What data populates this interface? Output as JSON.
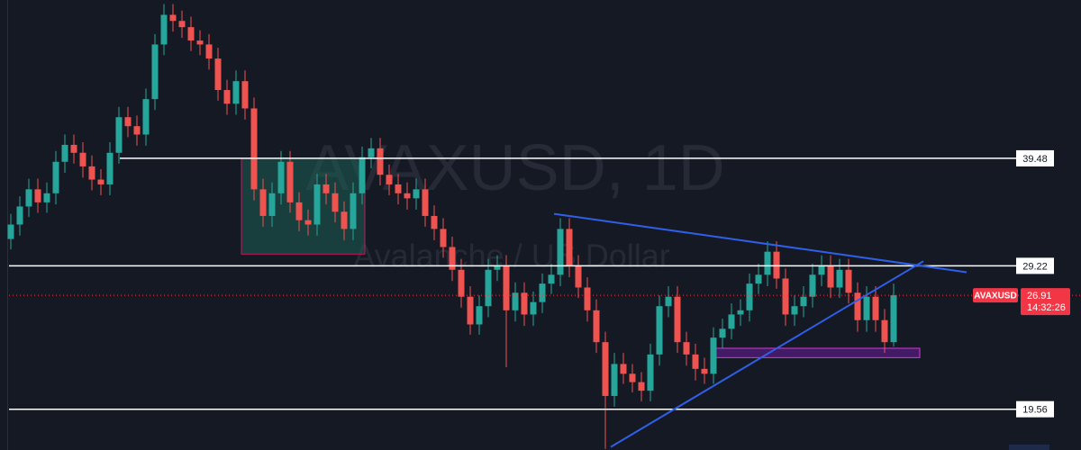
{
  "chart_data": {
    "type": "candlestick",
    "symbol": "AVAXUSD",
    "watermark_title": "AVAXUSD, 1D",
    "watermark_subtitle": "Avalanche / US Dollar",
    "log_scale": true,
    "ylim": [
      17.45,
      61.5
    ],
    "xlim": [
      -0.2,
      111.6
    ],
    "up_color": "#26a69a",
    "down_color": "#ef5350",
    "open": [
      31.5,
      32.8,
      34.5,
      36.2,
      34.9,
      35.8,
      39.1,
      41.0,
      40.1,
      38.6,
      37.2,
      36.7,
      40.1,
      44.3,
      43.2,
      42.2,
      46.6,
      54.3,
      59.0,
      58.0,
      57.0,
      54.9,
      54.3,
      52.2,
      47.8,
      46.0,
      49.0,
      45.4,
      36.2,
      33.6,
      35.8,
      39.1,
      34.9,
      33.2,
      32.8,
      36.7,
      35.8,
      34.0,
      32.4,
      35.8,
      39.6,
      40.6,
      37.7,
      36.7,
      35.8,
      35.3,
      36.2,
      33.6,
      32.4,
      30.8,
      28.9,
      26.8,
      24.8,
      26.1,
      28.9,
      29.2,
      25.8,
      27.1,
      25.5,
      26.4,
      27.8,
      28.5,
      32.4,
      29.2,
      27.5,
      25.8,
      23.6,
      20.3,
      22.2,
      21.6,
      21.1,
      20.6,
      22.8,
      26.1,
      26.8,
      23.6,
      22.8,
      21.9,
      21.6,
      23.9,
      24.5,
      25.5,
      25.8,
      27.8,
      28.5,
      30.4,
      28.2,
      25.5,
      26.1,
      26.8,
      28.5,
      29.2,
      27.5,
      28.9,
      27.1,
      25.1,
      26.8,
      25.1,
      23.6
    ],
    "high": [
      33.8,
      35.5,
      37.3,
      37.3,
      36.9,
      40.3,
      42.2,
      42.2,
      41.3,
      39.8,
      38.3,
      41.3,
      45.6,
      45.6,
      44.5,
      48.0,
      55.9,
      60.8,
      60.8,
      59.7,
      58.7,
      56.5,
      55.9,
      53.8,
      49.2,
      50.5,
      50.5,
      46.8,
      37.3,
      36.9,
      40.3,
      40.3,
      35.9,
      34.2,
      37.8,
      37.8,
      36.9,
      35.0,
      36.9,
      40.8,
      41.8,
      41.8,
      38.8,
      37.8,
      36.9,
      37.3,
      37.3,
      34.6,
      33.4,
      31.7,
      29.8,
      27.6,
      26.9,
      29.8,
      30.1,
      30.1,
      27.9,
      27.9,
      27.2,
      28.6,
      29.4,
      33.4,
      33.4,
      30.1,
      28.3,
      26.6,
      24.3,
      22.9,
      22.9,
      22.2,
      21.7,
      23.5,
      26.9,
      27.6,
      27.6,
      24.3,
      23.5,
      22.6,
      24.6,
      25.2,
      26.3,
      26.6,
      28.6,
      29.4,
      31.3,
      31.3,
      29.0,
      26.9,
      27.6,
      29.4,
      30.1,
      30.1,
      29.8,
      29.8,
      27.9,
      27.6,
      27.6,
      25.9,
      27.8
    ],
    "low": [
      30.6,
      31.8,
      33.5,
      33.9,
      33.9,
      34.7,
      37.9,
      38.9,
      37.4,
      36.1,
      35.6,
      35.6,
      38.9,
      41.9,
      40.9,
      40.9,
      45.2,
      52.7,
      56.3,
      55.3,
      53.3,
      52.7,
      50.6,
      46.4,
      44.6,
      44.6,
      44.0,
      35.1,
      32.6,
      32.6,
      34.7,
      33.9,
      32.2,
      31.8,
      31.8,
      34.7,
      33.0,
      31.4,
      31.4,
      34.7,
      38.4,
      36.6,
      35.6,
      34.7,
      34.2,
      34.2,
      32.6,
      31.4,
      29.9,
      28.0,
      26.0,
      24.1,
      24.1,
      25.3,
      28.0,
      22.0,
      25.0,
      24.7,
      24.7,
      25.6,
      27.0,
      27.6,
      28.3,
      26.7,
      25.0,
      22.9,
      17.5,
      19.7,
      21.0,
      20.5,
      20.0,
      20.0,
      22.1,
      25.3,
      22.9,
      22.1,
      21.2,
      21.0,
      21.0,
      23.2,
      23.8,
      24.7,
      25.0,
      27.0,
      27.6,
      27.4,
      24.7,
      24.7,
      25.3,
      26.0,
      27.6,
      26.7,
      26.7,
      26.3,
      24.3,
      24.3,
      24.3,
      22.9,
      23.3
    ],
    "close": [
      32.8,
      34.5,
      36.2,
      34.9,
      35.8,
      39.1,
      41.0,
      40.1,
      38.6,
      37.2,
      36.7,
      40.1,
      44.3,
      43.2,
      42.2,
      46.6,
      54.3,
      59.0,
      58.0,
      57.0,
      54.9,
      54.3,
      52.2,
      47.8,
      46.0,
      49.0,
      45.4,
      36.2,
      33.6,
      35.8,
      39.1,
      34.9,
      33.2,
      32.8,
      36.7,
      35.8,
      34.0,
      32.4,
      35.8,
      39.6,
      40.6,
      37.7,
      36.7,
      35.8,
      35.3,
      36.2,
      33.6,
      32.4,
      30.8,
      28.9,
      26.8,
      24.8,
      26.1,
      28.9,
      29.2,
      25.8,
      27.1,
      25.5,
      26.4,
      27.8,
      28.5,
      32.4,
      29.2,
      27.5,
      25.8,
      23.6,
      20.3,
      22.2,
      21.6,
      21.1,
      20.6,
      22.8,
      26.1,
      26.8,
      23.6,
      22.8,
      21.9,
      21.6,
      23.9,
      24.5,
      25.5,
      25.8,
      27.8,
      28.5,
      30.4,
      28.2,
      25.5,
      26.1,
      26.8,
      28.5,
      29.2,
      27.5,
      28.9,
      27.1,
      25.1,
      26.8,
      25.1,
      23.6,
      26.91
    ],
    "levels": [
      {
        "value": 39.48,
        "start": 12.1
      },
      {
        "value": 29.22
      },
      {
        "value": 19.56
      }
    ],
    "level_color": "#ffffff",
    "last_price": 26.91,
    "last_price_color": "#f23645",
    "countdown": "14:32:26",
    "trendlines": [
      {
        "x": [
          60.3,
          106.1
        ],
        "y": [
          33.8,
          28.7
        ],
        "color": "#2f5fe8"
      },
      {
        "x": [
          66.6,
          101.3
        ],
        "y": [
          17.6,
          29.6
        ],
        "color": "#2f5fe8"
      }
    ],
    "zones": [
      {
        "x": [
          25.6,
          39.3
        ],
        "y": [
          30.2,
          39.48
        ],
        "color": "#1b5e52",
        "border": "#c2185b"
      },
      {
        "x": [
          78.1,
          100.9
        ],
        "y": [
          22.6,
          23.2
        ],
        "color": "#6a1b9a",
        "border": "#d63bd6"
      }
    ]
  }
}
